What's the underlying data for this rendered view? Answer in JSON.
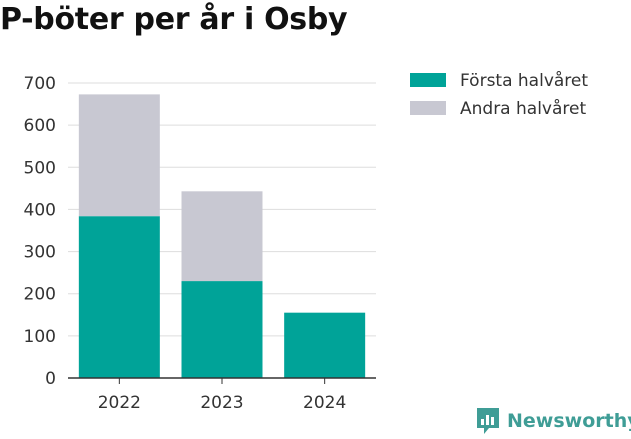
{
  "chart_data": {
    "type": "bar",
    "stacked": true,
    "title": "P-böter per år i Osby",
    "categories": [
      "2022",
      "2023",
      "2024"
    ],
    "series": [
      {
        "name": "Första halvåret",
        "color": "#00a398",
        "values": [
          384,
          230,
          155
        ]
      },
      {
        "name": "Andra halvåret",
        "color": "#c8c8d2",
        "values": [
          289,
          213,
          0
        ]
      }
    ],
    "ylim": [
      0,
      700
    ],
    "yticks": [
      0,
      100,
      200,
      300,
      400,
      500,
      600,
      700
    ],
    "grid": true,
    "legend": "top-right"
  },
  "branding": {
    "logo_text": "Newsworthy",
    "logo_icon": "bar-chart-speech-icon",
    "logo_color": "#3f9d96"
  }
}
